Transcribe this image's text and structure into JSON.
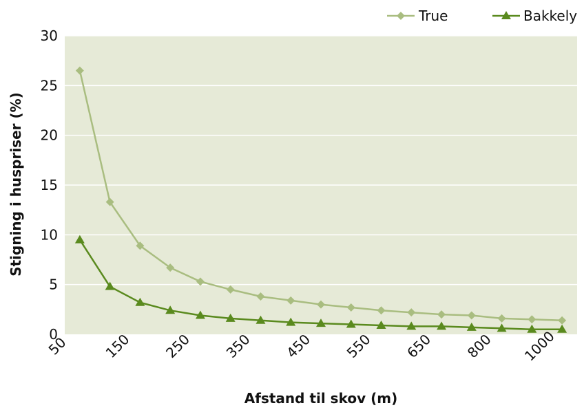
{
  "chart_data": {
    "type": "line",
    "xlabel": "Afstand til skov (m)",
    "ylabel": "Stigning i huspriser (%)",
    "ylim": [
      0,
      30
    ],
    "y_ticks": [
      "0",
      "5",
      "10",
      "15",
      "20",
      "25",
      "30"
    ],
    "x_tick_labels": [
      "50",
      "150",
      "250",
      "350",
      "450",
      "550",
      "650",
      "800",
      "1000"
    ],
    "grid": "horizontal",
    "legend_position": "top-right",
    "plot_background": "#e6ead7",
    "series": [
      {
        "name": "True",
        "marker": "diamond",
        "color": "#a9bd80",
        "values": [
          26.5,
          13.3,
          8.9,
          6.7,
          5.3,
          4.5,
          3.8,
          3.4,
          3.0,
          2.7,
          2.4,
          2.2,
          2.0,
          1.9,
          1.6,
          1.5,
          1.4
        ]
      },
      {
        "name": "Bakkely",
        "marker": "triangle",
        "color": "#5a8a1e",
        "values": [
          9.5,
          4.8,
          3.2,
          2.4,
          1.9,
          1.6,
          1.4,
          1.2,
          1.1,
          1.0,
          0.9,
          0.8,
          0.8,
          0.7,
          0.6,
          0.5,
          0.5
        ]
      }
    ]
  }
}
